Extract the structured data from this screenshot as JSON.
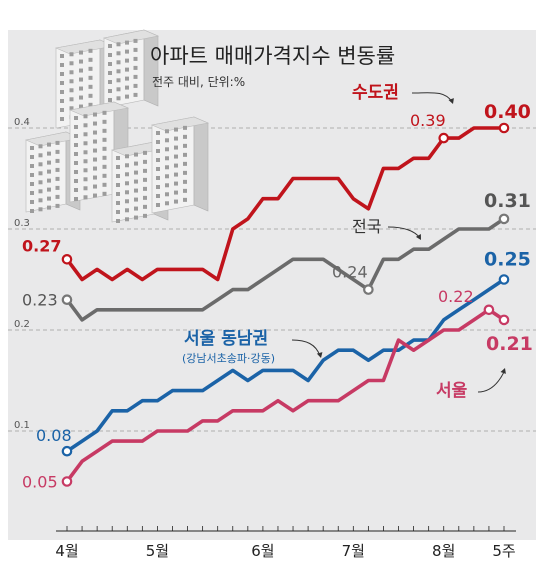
{
  "title": "아파트 매매가격지수 변동률",
  "subtitle": "전주 대비, 단위:%",
  "chart_data": {
    "type": "line",
    "title": "아파트 매매가격지수 변동률",
    "subtitle": "전주 대비, 단위:%",
    "xlabel": "",
    "ylabel": "",
    "ylim": [
      0,
      0.4
    ],
    "yticks": [
      "0.1",
      "0.2",
      "0.3",
      "0.4"
    ],
    "x_tick_labels": [
      "4월",
      "5월",
      "6월",
      "7월",
      "8월",
      "5주"
    ],
    "grid": "dashed horizontal",
    "series": [
      {
        "name": "수도권",
        "color": "#c0141c",
        "start_label": "0.27",
        "end_label": "0.40",
        "peak_label": "0.39",
        "values": [
          0.27,
          0.25,
          0.26,
          0.25,
          0.26,
          0.25,
          0.26,
          0.26,
          0.26,
          0.26,
          0.25,
          0.3,
          0.31,
          0.33,
          0.33,
          0.35,
          0.35,
          0.35,
          0.35,
          0.33,
          0.32,
          0.36,
          0.36,
          0.37,
          0.37,
          0.39,
          0.39,
          0.4,
          0.4,
          0.4
        ]
      },
      {
        "name": "전국",
        "color": "#6b6b6b",
        "start_label": "0.23",
        "end_label": "0.31",
        "mid_label": "0.24",
        "values": [
          0.23,
          0.21,
          0.22,
          0.22,
          0.22,
          0.22,
          0.22,
          0.22,
          0.22,
          0.22,
          0.23,
          0.24,
          0.24,
          0.25,
          0.26,
          0.27,
          0.27,
          0.27,
          0.26,
          0.25,
          0.24,
          0.27,
          0.27,
          0.28,
          0.28,
          0.29,
          0.3,
          0.3,
          0.3,
          0.31
        ]
      },
      {
        "name": "서울 동남권",
        "note": "(강남서초송파·강동)",
        "color": "#1b63a7",
        "start_label": "0.08",
        "end_label": "0.25",
        "values": [
          0.08,
          0.09,
          0.1,
          0.12,
          0.12,
          0.13,
          0.13,
          0.14,
          0.14,
          0.14,
          0.15,
          0.16,
          0.15,
          0.16,
          0.16,
          0.16,
          0.15,
          0.17,
          0.18,
          0.18,
          0.17,
          0.18,
          0.18,
          0.19,
          0.19,
          0.21,
          0.22,
          0.23,
          0.24,
          0.25
        ]
      },
      {
        "name": "서울",
        "color": "#c73a64",
        "start_label": "0.05",
        "end_label": "0.21",
        "mid_label": "0.22",
        "values": [
          0.05,
          0.07,
          0.08,
          0.09,
          0.09,
          0.09,
          0.1,
          0.1,
          0.1,
          0.11,
          0.11,
          0.12,
          0.12,
          0.12,
          0.13,
          0.12,
          0.13,
          0.13,
          0.13,
          0.14,
          0.15,
          0.15,
          0.19,
          0.18,
          0.19,
          0.2,
          0.2,
          0.21,
          0.22,
          0.21
        ]
      }
    ]
  }
}
